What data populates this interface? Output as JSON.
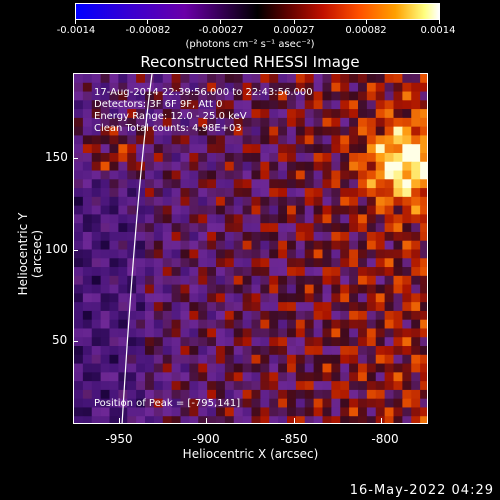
{
  "colorbar": {
    "ticks": [
      "-0.0014",
      "-0.00082",
      "-0.00027",
      "0.00027",
      "0.00082",
      "0.0014"
    ],
    "units": "(photons cm⁻² s⁻¹ asec⁻²)"
  },
  "title": "Reconstructed RHESSI Image",
  "info": {
    "time": "17-Aug-2014 22:39:56.000 to 22:43:56.000",
    "detectors": "Detectors: 3F 6F 9F, Att 0",
    "energy": "Energy Range: 12.0 - 25.0 keV",
    "clean": "Clean     Total counts: 4.98E+03",
    "peak": "Position of Peak = [-795,141]"
  },
  "chart_data": {
    "type": "heatmap",
    "title": "Reconstructed RHESSI Image",
    "xlabel": "Heliocentric X (arcsec)",
    "ylabel": "Heliocentric Y (arcsec)",
    "xlim": [
      -972,
      -777
    ],
    "ylim": [
      3,
      196
    ],
    "xticks": [
      -950,
      -900,
      -850,
      -800
    ],
    "yticks": [
      50,
      100,
      150
    ],
    "xtick_labels": [
      "-950",
      "-900",
      "-850",
      "-800"
    ],
    "ytick_labels": [
      "50",
      "100",
      "150"
    ],
    "colorbar_range": [
      -0.0014,
      0.0014
    ],
    "peak_position": [
      -795,
      141
    ]
  },
  "datestamp": "16-May-2022 04:29"
}
